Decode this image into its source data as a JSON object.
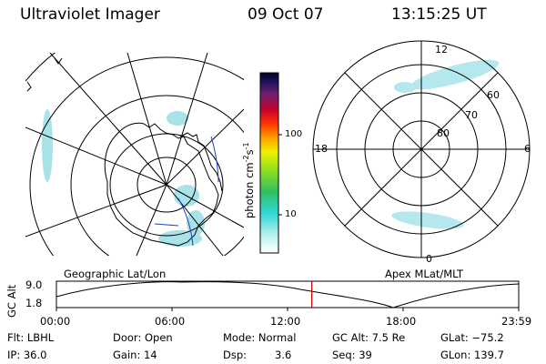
{
  "header": {
    "title": "Ultraviolet Imager",
    "date": "09 Oct 07",
    "time": "13:15:25 UT"
  },
  "colorbar": {
    "unit_label": "photon cm",
    "unit_sup1": "-2",
    "unit_s": "s",
    "unit_sup2": "-1",
    "ticks": [
      "100",
      "10"
    ]
  },
  "left_panel": {
    "caption": "Geographic Lat/Lon"
  },
  "right_panel": {
    "caption": "Apex MLat/MLT",
    "mlt_labels": {
      "top": "12",
      "left": "18",
      "right": "6",
      "bottom": "0"
    },
    "lat_labels": [
      "80",
      "70",
      "60"
    ]
  },
  "altitude_plot": {
    "ylabel": "GC Alt",
    "yticks": [
      "9.0",
      "1.8"
    ],
    "xticks": [
      "00:00",
      "06:00",
      "12:00",
      "18:00",
      "23:59"
    ],
    "marker_time_hours": 13.26
  },
  "status": {
    "flt": "Flt: LBHL",
    "ip": "IP: 36.0",
    "door": "Door: Open",
    "gain": "Gain: 14",
    "mode": "Mode: Normal",
    "dsp_label": "Dsp:",
    "dsp_value": "3.6",
    "gc_alt": "GC Alt: 7.5 Re",
    "seq": "Seq: 39",
    "glat": "GLat: −75.2",
    "glon": "GLon: 139.7"
  },
  "colors": {
    "marker": "#cc0000",
    "aurora": "#9fe0e6",
    "coast_blue": "#1a3fcc"
  }
}
